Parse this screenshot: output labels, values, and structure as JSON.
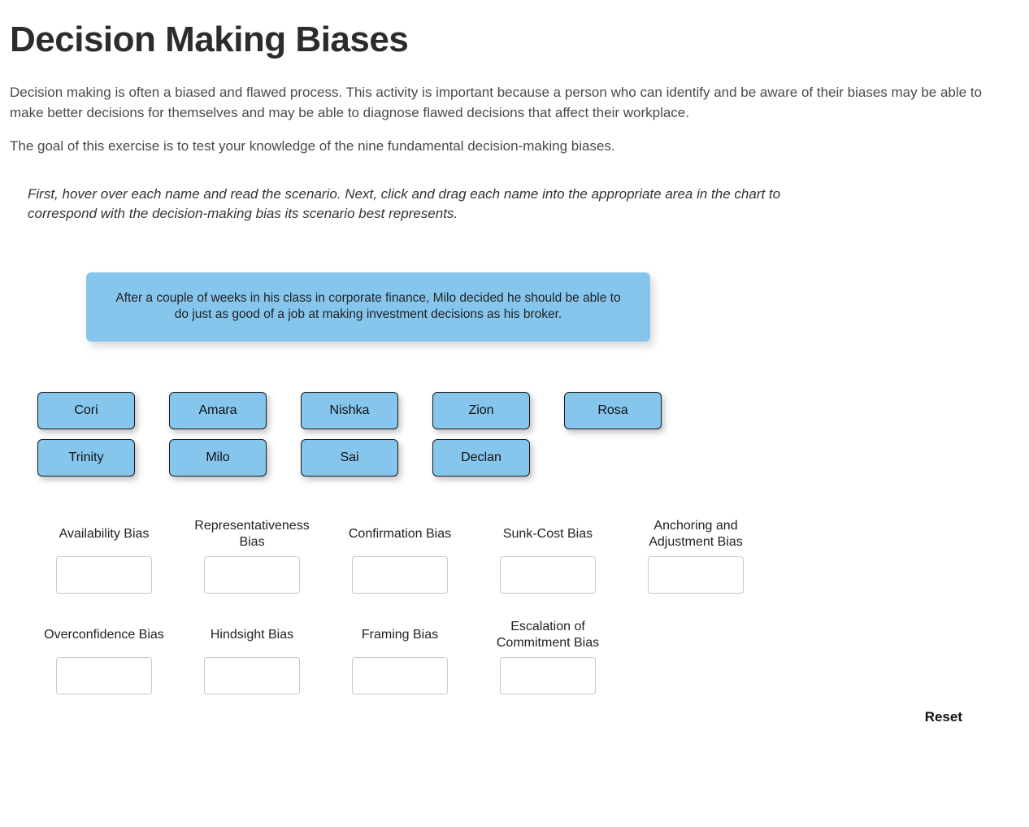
{
  "title": "Decision Making Biases",
  "intro_p1": "Decision making is often a biased and flawed process. This activity is important because a person who can identify and be aware of their biases may be able to make better decisions for themselves and may be able to diagnose flawed decisions that affect their workplace.",
  "intro_p2": "The goal of this exercise is to test your knowledge of the nine fundamental decision-making biases.",
  "instructions": "First, hover over each name and read the scenario. Next, click and drag each name into the appropriate area in the chart to correspond with the decision-making bias its scenario best represents.",
  "scenario_text": "After a couple of weeks in his class in corporate finance, Milo decided he should be able to do just as good of a job at making investment decisions as his broker.",
  "names_row1": [
    "Cori",
    "Amara",
    "Nishka",
    "Zion",
    "Rosa"
  ],
  "names_row2": [
    "Trinity",
    "Milo",
    "Sai",
    "Declan"
  ],
  "targets_row1": [
    "Availability Bias",
    "Representativeness Bias",
    "Confirmation Bias",
    "Sunk-Cost Bias",
    "Anchoring and Adjustment Bias"
  ],
  "targets_row2": [
    "Overconfidence Bias",
    "Hindsight Bias",
    "Framing Bias",
    "Escalation of Commitment Bias"
  ],
  "reset_label": "Reset",
  "colors": {
    "chip_bg": "#86c6ed",
    "chip_border": "#1a1a1a",
    "page_bg": "#ffffff",
    "title_color": "#2c2c2c",
    "body_text": "#4a4a4a",
    "slot_border": "#c9c9c9"
  }
}
